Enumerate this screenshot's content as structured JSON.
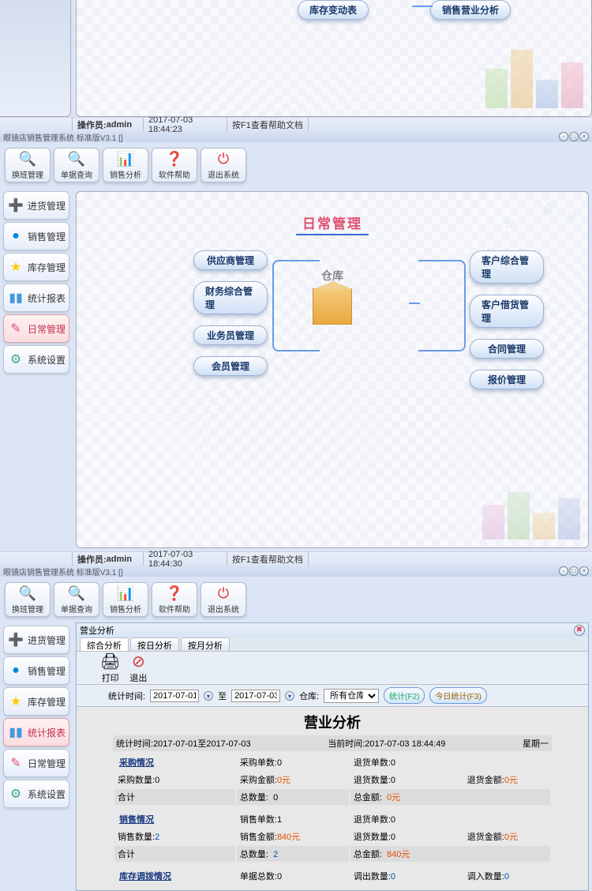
{
  "top_buttons": {
    "inventory_change": "库存变动表",
    "sales_analysis": "销售营业分析"
  },
  "status": {
    "operator_label": "操作员:",
    "operator": "admin",
    "time1": "2017-07-03 18:44:23",
    "time2": "2017-07-03 18:44:30",
    "help": "按F1查看帮助文档"
  },
  "title": "眼镜店销售管理系统 标准版V3.1 []",
  "toolbar": [
    {
      "name": "shift",
      "label": "换班管理",
      "icon": "🔍",
      "color": "#5a7ab0"
    },
    {
      "name": "query",
      "label": "单据查询",
      "icon": "🔍",
      "color": "#d14"
    },
    {
      "name": "sales",
      "label": "销售分析",
      "icon": "📊",
      "color": "#d14"
    },
    {
      "name": "help",
      "label": "软件帮助",
      "icon": "❓",
      "color": "#d14"
    },
    {
      "name": "exit",
      "label": "退出系统",
      "icon": "⏻",
      "color": "#e03030"
    }
  ],
  "sidebar": [
    {
      "name": "purchase",
      "label": "进货管理",
      "icon": "➕",
      "color": "#3c3"
    },
    {
      "name": "sales",
      "label": "销售管理",
      "icon": "●",
      "color": "#08d"
    },
    {
      "name": "inventory",
      "label": "库存管理",
      "icon": "★",
      "color": "#fc0"
    },
    {
      "name": "reports",
      "label": "统计报表",
      "icon": "▮▮",
      "color": "#49d"
    },
    {
      "name": "daily",
      "label": "日常管理",
      "icon": "✎",
      "color": "#e05070"
    },
    {
      "name": "settings",
      "label": "系统设置",
      "icon": "⚙",
      "color": "#4a8"
    }
  ],
  "sidebar_alt": [
    {
      "name": "purchase",
      "label": "进货管理",
      "icon": "➕",
      "color": "#3c3"
    },
    {
      "name": "sales",
      "label": "销售管理",
      "icon": "●",
      "color": "#08d"
    },
    {
      "name": "inventory",
      "label": "库存管理",
      "icon": "★",
      "color": "#fc0"
    },
    {
      "name": "reports",
      "label": "统计报表",
      "icon": "▮▮",
      "color": "#49d"
    },
    {
      "name": "daily",
      "label": "日常管理",
      "icon": "✎",
      "color": "#e05070"
    },
    {
      "name": "settings",
      "label": "系统设置",
      "icon": "⚙",
      "color": "#4a8"
    }
  ],
  "daily": {
    "title": "日常管理",
    "hub_label": "仓库",
    "left": [
      "供应商管理",
      "财务综合管理",
      "业务员管理",
      "会员管理"
    ],
    "right": [
      "客户综合管理",
      "客户借货管理",
      "合同管理",
      "报价管理"
    ]
  },
  "analysis": {
    "win_title": "营业分析",
    "tabs": [
      "综合分析",
      "按日分析",
      "按月分析"
    ],
    "active_tab": 0,
    "print": "打印",
    "exit": "退出",
    "stat_time_label": "统计时间:",
    "from": "2017-07-01",
    "to_label": "至",
    "to": "2017-07-03",
    "warehouse_label": "仓库:",
    "warehouse": "所有仓库",
    "btn_stat": "统计(F2)",
    "btn_today": "今日统计(F3)",
    "report": {
      "title": "营业分析",
      "range_label": "统计时间:",
      "range": "2017-07-01至2017-07-03",
      "now_label": "当前时间:",
      "now": "2017-07-03 18:44:49",
      "weekday": "星期一",
      "purchase": {
        "hdr": "采购情况",
        "orders_l": "采购单数:",
        "orders": "0",
        "qty_l": "采购数量:",
        "qty": "0",
        "amt_l": "采购金额:",
        "amt": "0元",
        "ret_orders_l": "退货单数:",
        "ret_orders": "0",
        "ret_qty_l": "退货数量:",
        "ret_qty": "0",
        "ret_amt_l": "退货金额:",
        "ret_amt": "0元",
        "total_l": "合计",
        "tq_l": "总数量:",
        "tq": "0",
        "ta_l": "总金额:",
        "ta": "0元"
      },
      "sale": {
        "hdr": "销售情况",
        "orders_l": "销售单数:",
        "orders": "1",
        "qty_l": "销售数量:",
        "qty": "2",
        "amt_l": "销售金额:",
        "amt": "840元",
        "ret_orders_l": "退货单数:",
        "ret_orders": "0",
        "ret_qty_l": "退货数量:",
        "ret_qty": "0",
        "ret_amt_l": "退货金额:",
        "ret_amt": "0元",
        "total_l": "合计",
        "tq_l": "总数量:",
        "tq": "2",
        "ta_l": "总金额:",
        "ta": "840元"
      },
      "stock": {
        "hdr": "库存调拨情况",
        "orders_l": "单据总数:",
        "orders": "0",
        "out_l": "调出数量:",
        "out": "0",
        "in_l": "调入数量:",
        "in": "0"
      }
    }
  }
}
